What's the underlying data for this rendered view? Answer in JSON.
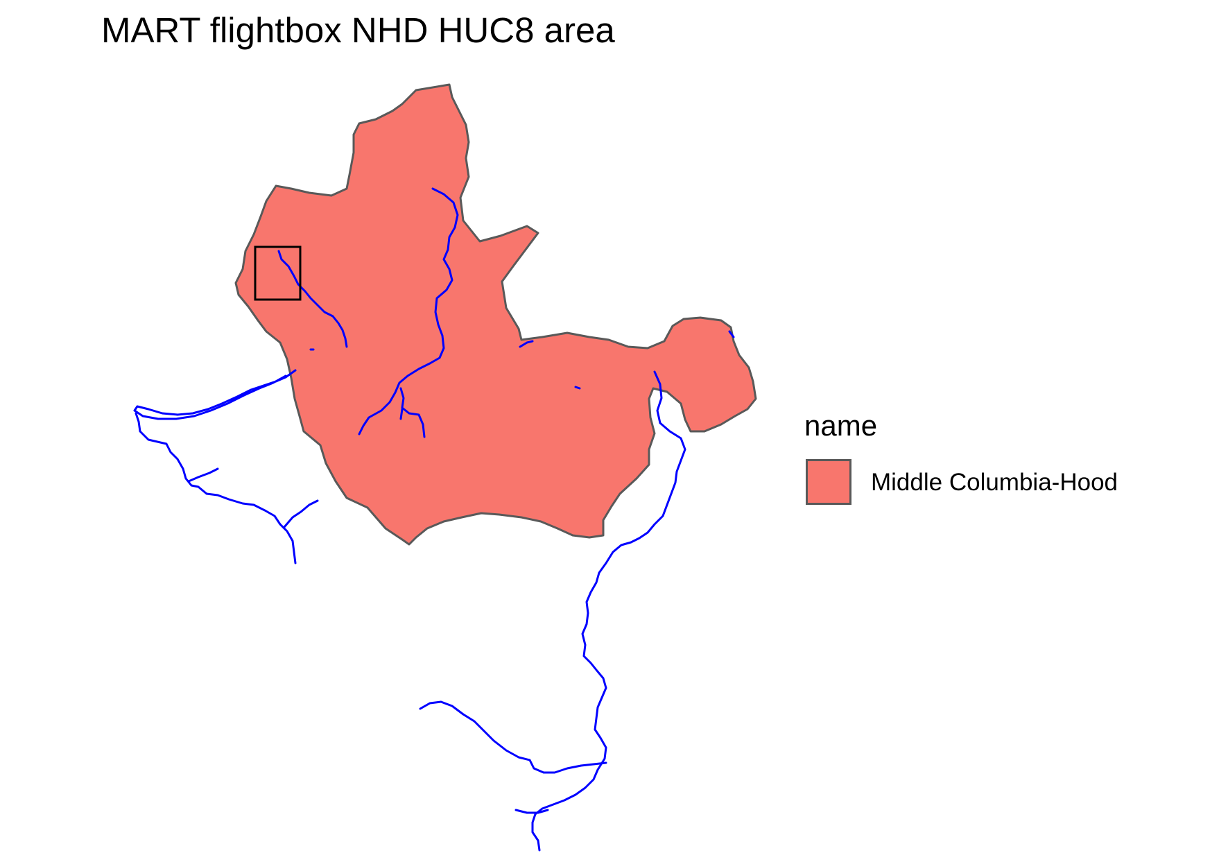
{
  "map": {
    "title": "MART flightbox NHD HUC8 area"
  },
  "legend": {
    "title": "name",
    "items": [
      {
        "label": "Middle Columbia-Hood",
        "color": "#F8766D",
        "border": "#595959"
      }
    ]
  },
  "styles": {
    "water_color": "#0000FF",
    "flightbox_color": "#000000",
    "huc8_fill": "#F8766D",
    "huc8_outline": "#595959"
  }
}
